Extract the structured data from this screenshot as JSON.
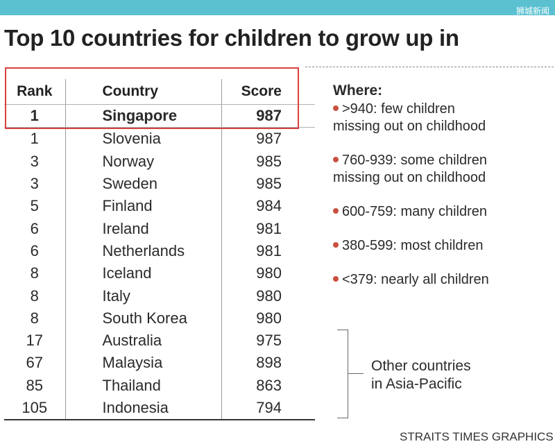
{
  "watermark": "狮城新闻",
  "title": "Top 10 countries for children to grow up in",
  "table": {
    "headers": {
      "rank": "Rank",
      "country": "Country",
      "score": "Score"
    },
    "rows": [
      {
        "rank": "1",
        "country": "Singapore",
        "score": "987"
      },
      {
        "rank": "1",
        "country": "Slovenia",
        "score": "987"
      },
      {
        "rank": "3",
        "country": "Norway",
        "score": "985"
      },
      {
        "rank": "3",
        "country": "Sweden",
        "score": "985"
      },
      {
        "rank": "5",
        "country": "Finland",
        "score": "984"
      },
      {
        "rank": "6",
        "country": "Ireland",
        "score": "981"
      },
      {
        "rank": "6",
        "country": "Netherlands",
        "score": "981"
      },
      {
        "rank": "8",
        "country": "Iceland",
        "score": "980"
      },
      {
        "rank": "8",
        "country": "Italy",
        "score": "980"
      },
      {
        "rank": "8",
        "country": "South Korea",
        "score": "980"
      },
      {
        "rank": "17",
        "country": "Australia",
        "score": "975"
      },
      {
        "rank": "67",
        "country": "Malaysia",
        "score": "898"
      },
      {
        "rank": "85",
        "country": "Thailand",
        "score": "863"
      },
      {
        "rank": "105",
        "country": "Indonesia",
        "score": "794"
      }
    ]
  },
  "legend": {
    "title": "Where:",
    "items": [
      {
        "line1": ">940: few children",
        "line2": "missing out on childhood"
      },
      {
        "line1": "760-939: some children",
        "line2": "missing out on childhood"
      },
      {
        "line1": "600-759: many children",
        "line2": ""
      },
      {
        "line1": "380-599: most children",
        "line2": ""
      },
      {
        "line1": "<379: nearly all children",
        "line2": ""
      }
    ]
  },
  "other_countries": {
    "line1": "Other countries",
    "line2": "in Asia-Pacific"
  },
  "credit": "STRAITS TIMES GRAPHICS",
  "colors": {
    "top_bar": "#5bc1d1",
    "highlight_box": "#d94040",
    "bullet": "#c9503f"
  }
}
